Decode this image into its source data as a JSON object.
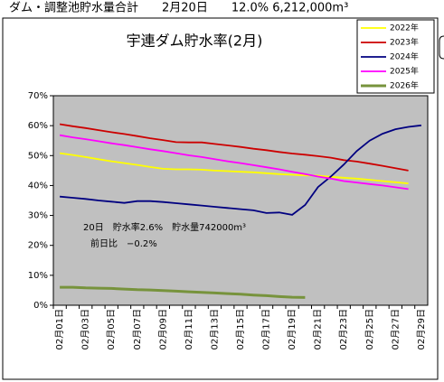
{
  "header": "ダム・調整池貯水量合計　　2月20日　　12.0% 6,212,000m³",
  "chart_data": {
    "type": "line",
    "title": "宇連ダム貯水率(2月)",
    "annotations": [
      "20日　貯水率2.6%　貯水量742000m³",
      "前日比　−0.2%"
    ],
    "categories": [
      "02月01日",
      null,
      "02月03日",
      null,
      "02月05日",
      null,
      "02月07日",
      null,
      "02月09日",
      null,
      "02月11日",
      null,
      "02月13日",
      null,
      "02月15日",
      null,
      "02月17日",
      null,
      "02月19日",
      null,
      "02月21日",
      null,
      "02月23日",
      null,
      "02月25日",
      null,
      "02月27日",
      null,
      "02月29日"
    ],
    "series": [
      {
        "name": "2022年",
        "color": "#ffff00",
        "values": [
          50.8,
          50.2,
          49.5,
          48.8,
          48.1,
          47.5,
          46.9,
          46.2,
          45.6,
          45.4,
          45.4,
          45.3,
          45.0,
          44.8,
          44.6,
          44.4,
          44.1,
          43.8,
          43.6,
          43.4,
          43.3,
          42.9,
          42.6,
          42.3,
          41.9,
          41.5,
          41.1,
          40.7,
          null
        ]
      },
      {
        "name": "2023年",
        "color": "#cc0000",
        "values": [
          60.5,
          59.8,
          59.2,
          58.5,
          57.8,
          57.2,
          56.5,
          55.8,
          55.2,
          54.5,
          54.4,
          54.4,
          53.9,
          53.4,
          52.9,
          52.3,
          51.8,
          51.2,
          50.7,
          50.3,
          49.8,
          49.3,
          48.5,
          48.0,
          47.3,
          46.6,
          45.8,
          45.0,
          null
        ]
      },
      {
        "name": "2024年",
        "color": "#000080",
        "values": [
          36.3,
          35.9,
          35.5,
          35.0,
          34.6,
          34.2,
          34.8,
          34.8,
          34.5,
          34.1,
          33.7,
          33.3,
          32.9,
          32.5,
          32.1,
          31.7,
          30.8,
          31.0,
          30.2,
          33.5,
          39.5,
          43.0,
          47.0,
          51.5,
          55.0,
          57.3,
          58.8,
          59.6,
          60.1
        ]
      },
      {
        "name": "2025年",
        "color": "#ff00ff",
        "values": [
          56.8,
          56.1,
          55.5,
          54.8,
          54.1,
          53.5,
          52.8,
          52.1,
          51.5,
          50.8,
          50.1,
          49.5,
          48.8,
          48.1,
          47.5,
          46.8,
          46.1,
          45.4,
          44.6,
          43.8,
          43.0,
          42.3,
          41.5,
          41.0,
          40.5,
          40.0,
          39.4,
          38.8,
          null
        ]
      },
      {
        "name": "2026年",
        "color": "#77933c",
        "values": [
          6.0,
          6.0,
          5.8,
          5.7,
          5.6,
          5.4,
          5.2,
          5.1,
          4.9,
          4.7,
          4.5,
          4.3,
          4.1,
          3.9,
          3.7,
          3.4,
          3.2,
          2.9,
          2.7,
          2.6,
          null,
          null,
          null,
          null,
          null,
          null,
          null,
          null,
          null
        ]
      }
    ],
    "ylim": [
      0,
      70
    ],
    "yticks": [
      {
        "value": 0,
        "label": "0%"
      },
      {
        "value": 10,
        "label": "10%"
      },
      {
        "value": 20,
        "label": "20%"
      },
      {
        "value": 30,
        "label": "30%"
      },
      {
        "value": 40,
        "label": "40%"
      },
      {
        "value": 50,
        "label": "50%"
      },
      {
        "value": 60,
        "label": "60%"
      },
      {
        "value": 70,
        "label": "70%"
      }
    ],
    "grid": false,
    "legend": "top-right",
    "plot_color": "#c0c0c0"
  }
}
